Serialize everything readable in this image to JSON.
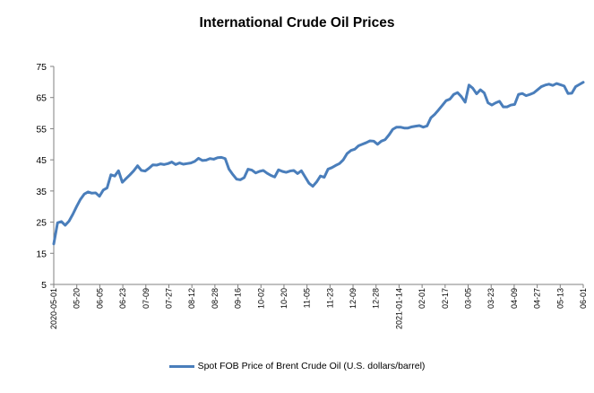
{
  "chart_data": {
    "type": "line",
    "title": "International Crude Oil Prices",
    "xlabel": "",
    "ylabel": "",
    "ylim": [
      5,
      75
    ],
    "yticks": [
      5,
      15,
      25,
      35,
      45,
      55,
      65,
      75
    ],
    "grid": false,
    "legend_position": "bottom",
    "line_color": "#4a7ebb",
    "x_tick_labels": [
      "2020-05-01",
      "05-20",
      "06-05",
      "06-23",
      "07-09",
      "07-27",
      "08-12",
      "08-28",
      "09-16",
      "10-02",
      "10-20",
      "11-05",
      "11-23",
      "12-09",
      "12-28",
      "2021-01-14",
      "02-01",
      "02-17",
      "03-05",
      "03-23",
      "04-09",
      "04-27",
      "05-13",
      "06-01"
    ],
    "series": [
      {
        "name": "Spot FOB Price of Brent Crude Oil (U.S. dollars/barrel)",
        "values": [
          18.0,
          24.8,
          25.2,
          24.0,
          25.3,
          27.5,
          30.0,
          32.3,
          34.0,
          34.7,
          34.3,
          34.4,
          33.3,
          35.3,
          36.0,
          40.2,
          39.8,
          41.5,
          37.8,
          39.0,
          40.2,
          41.5,
          43.1,
          41.6,
          41.4,
          42.3,
          43.4,
          43.3,
          43.7,
          43.5,
          43.8,
          44.3,
          43.5,
          44.0,
          43.6,
          43.8,
          44.0,
          44.5,
          45.5,
          44.8,
          44.9,
          45.4,
          45.2,
          45.7,
          45.8,
          45.4,
          42.0,
          40.3,
          38.8,
          38.6,
          39.3,
          42.0,
          41.7,
          40.8,
          41.3,
          41.6,
          40.7,
          40.0,
          39.5,
          41.8,
          41.3,
          41.0,
          41.4,
          41.6,
          40.6,
          41.5,
          39.5,
          37.5,
          36.5,
          37.9,
          39.8,
          39.4,
          42.0,
          42.5,
          43.2,
          43.8,
          45.0,
          47.0,
          48.0,
          48.4,
          49.5,
          50.0,
          50.5,
          51.1,
          51.0,
          50.0,
          51.0,
          51.5,
          53.0,
          54.8,
          55.5,
          55.5,
          55.2,
          55.2,
          55.6,
          55.8,
          56.0,
          55.5,
          55.9,
          58.5,
          59.6,
          61.0,
          62.5,
          64.0,
          64.5,
          66.0,
          66.6,
          65.3,
          63.5,
          69.0,
          68.0,
          66.2,
          67.5,
          66.5,
          63.3,
          62.6,
          63.3,
          63.8,
          62.0,
          62.0,
          62.6,
          62.8,
          66.0,
          66.3,
          65.6,
          66.0,
          66.5,
          67.5,
          68.5,
          69.0,
          69.3,
          68.9,
          69.5,
          69.1,
          68.7,
          66.3,
          66.4,
          68.5,
          69.2,
          69.9
        ]
      }
    ]
  }
}
